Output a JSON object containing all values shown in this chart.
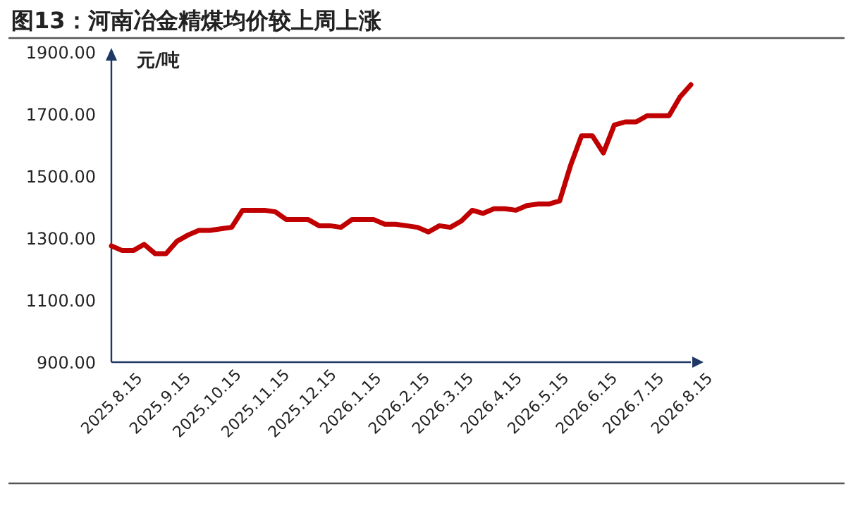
{
  "chart_data": {
    "type": "line",
    "title": "图13：河南冶金精煤均价较上周上涨",
    "ylabel": "元/吨",
    "x": [
      "2025-08-15",
      "2025-08-22",
      "2025-08-29",
      "2025-09-05",
      "2025-09-12",
      "2025-09-19",
      "2025-09-26",
      "2025-10-03",
      "2025-10-10",
      "2025-10-17",
      "2025-10-24",
      "2025-10-31",
      "2025-11-07",
      "2025-11-14",
      "2025-11-21",
      "2025-11-28",
      "2025-12-05",
      "2025-12-12",
      "2025-12-19",
      "2025-12-26",
      "2026-01-02",
      "2026-01-09",
      "2026-01-16",
      "2026-01-23",
      "2026-01-30",
      "2026-02-06",
      "2026-02-13",
      "2026-02-20",
      "2026-02-27",
      "2026-03-06",
      "2026-03-13",
      "2026-03-20",
      "2026-03-27",
      "2026-04-03",
      "2026-04-10",
      "2026-04-17",
      "2026-04-24",
      "2026-05-01",
      "2026-05-08",
      "2026-05-15",
      "2026-05-22",
      "2026-05-29",
      "2026-06-05",
      "2026-06-12",
      "2026-06-19",
      "2026-06-26",
      "2026-07-03",
      "2026-07-10",
      "2026-07-17",
      "2026-07-24",
      "2026-07-31",
      "2026-08-07",
      "2026-08-14",
      "2026-08-21"
    ],
    "series": [
      {
        "color": "#c00000",
        "values": [
          1275,
          1260,
          1260,
          1280,
          1250,
          1250,
          1290,
          1310,
          1325,
          1325,
          1330,
          1335,
          1390,
          1390,
          1390,
          1385,
          1360,
          1360,
          1360,
          1340,
          1340,
          1335,
          1360,
          1360,
          1360,
          1345,
          1345,
          1340,
          1335,
          1320,
          1340,
          1335,
          1355,
          1390,
          1380,
          1395,
          1395,
          1390,
          1405,
          1410,
          1410,
          1420,
          1535,
          1630,
          1630,
          1575,
          1665,
          1675,
          1675,
          1695,
          1695,
          1695,
          1755,
          1795
        ]
      }
    ],
    "xlim": [
      "2025-08-15",
      "2026-08-21"
    ],
    "xticks": [
      {
        "value": "2025-08-15",
        "label": "2025.8.15"
      },
      {
        "value": "2025-09-15",
        "label": "2025.9.15"
      },
      {
        "value": "2025-10-15",
        "label": "2025.10.15"
      },
      {
        "value": "2025-11-15",
        "label": "2025.11.15"
      },
      {
        "value": "2025-12-15",
        "label": "2025.12.15"
      },
      {
        "value": "2026-01-15",
        "label": "2026.1.15"
      },
      {
        "value": "2026-02-15",
        "label": "2026.2.15"
      },
      {
        "value": "2026-03-15",
        "label": "2026.3.15"
      },
      {
        "value": "2026-04-15",
        "label": "2026.4.15"
      },
      {
        "value": "2026-05-15",
        "label": "2026.5.15"
      },
      {
        "value": "2026-06-15",
        "label": "2026.6.15"
      },
      {
        "value": "2026-07-15",
        "label": "2026.7.15"
      },
      {
        "value": "2026-08-15",
        "label": "2026.8.15"
      }
    ],
    "ylim": [
      900,
      1900
    ],
    "yticks": [
      {
        "value": 900,
        "label": "900.00"
      },
      {
        "value": 1100,
        "label": "1100.00"
      },
      {
        "value": 1300,
        "label": "1300.00"
      },
      {
        "value": 1500,
        "label": "1500.00"
      },
      {
        "value": 1700,
        "label": "1700.00"
      },
      {
        "value": 1900,
        "label": "1900.00"
      }
    ],
    "grid": false,
    "marker": "none",
    "line_style": "solid"
  }
}
